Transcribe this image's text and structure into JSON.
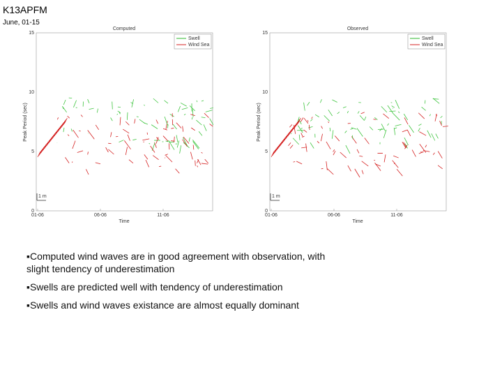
{
  "header": {
    "title": "K13APFM",
    "subtitle": "June, 01-15"
  },
  "panels": [
    {
      "title": "Computed",
      "legend": [
        "Swell",
        "Wind Sea"
      ],
      "y_label": "Peak Period (sec)",
      "x_label": "Time",
      "y_ticks": [
        "15",
        "10",
        "5",
        "0"
      ],
      "x_ticks": [
        "01-06",
        "06-06",
        "11-06"
      ],
      "scale": "1 m"
    },
    {
      "title": "Observed",
      "legend": [
        "Swell",
        "Wind Sea"
      ],
      "y_label": "Peak Period (sec)",
      "x_label": "Time",
      "y_ticks": [
        "15",
        "10",
        "5",
        "0"
      ],
      "x_ticks": [
        "01-06",
        "06-06",
        "11-06"
      ],
      "scale": "1 m"
    }
  ],
  "bullets": [
    "▪Computed wind waves are in good agreement with observation, with slight tendency of underestimation",
    "▪Swells are predicted well with tendency of underestimation",
    "▪Swells and wind waves existance are almost equally dominant"
  ]
}
